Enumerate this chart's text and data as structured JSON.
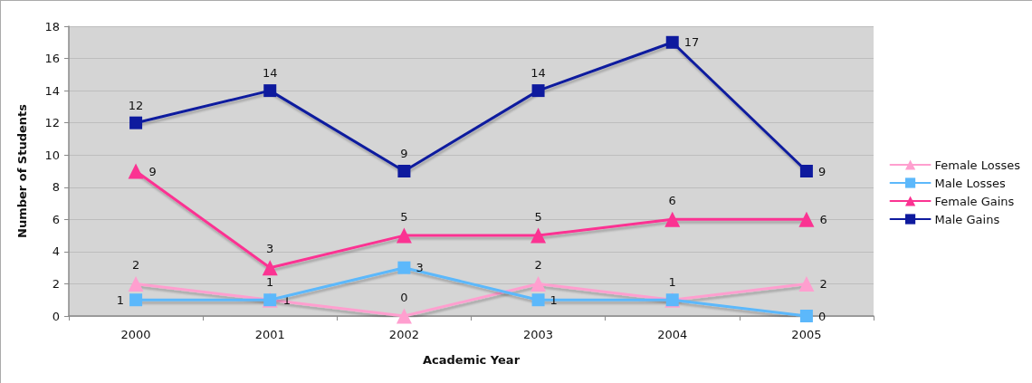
{
  "chart_data": {
    "type": "line",
    "xlabel": "Academic Year",
    "ylabel": "Number of Students",
    "categories": [
      "2000",
      "2001",
      "2002",
      "2003",
      "2004",
      "2005"
    ],
    "series": [
      {
        "name": "Female Losses",
        "color": "#ff9fcf",
        "marker": "triangle",
        "values": [
          2,
          1,
          0,
          2,
          1,
          2
        ],
        "value_labels": [
          "2",
          "1",
          "0",
          "2",
          null,
          "2"
        ]
      },
      {
        "name": "Male Losses",
        "color": "#5cb8fb",
        "marker": "square",
        "values": [
          1,
          1,
          3,
          1,
          1,
          0
        ],
        "value_labels": [
          "1",
          "1",
          "3",
          "1",
          "1",
          "0"
        ]
      },
      {
        "name": "Female Gains",
        "color": "#fb3392",
        "marker": "triangle",
        "values": [
          9,
          3,
          5,
          5,
          6,
          6
        ],
        "value_labels": [
          "9",
          "3",
          "5",
          "5",
          "6",
          "6"
        ]
      },
      {
        "name": "Male Gains",
        "color": "#0e1a9e",
        "marker": "square",
        "values": [
          12,
          14,
          9,
          14,
          17,
          9
        ],
        "value_labels": [
          "12",
          "14",
          "9",
          "14",
          "17",
          "9"
        ]
      }
    ],
    "ylim": [
      0,
      18
    ],
    "yticks": [
      0,
      2,
      4,
      6,
      8,
      10,
      12,
      14,
      16,
      18
    ],
    "grid": "y",
    "legend": "right"
  }
}
